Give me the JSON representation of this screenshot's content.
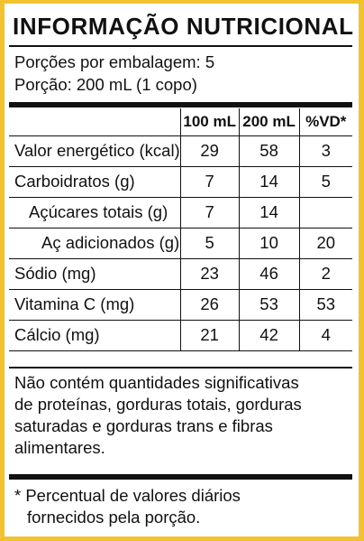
{
  "label": {
    "title": "INFORMAÇÃO NUTRICIONAL",
    "servings_per_package": "Porções por embalagem: 5",
    "serving_size": "Porção: 200 mL (1 copo)",
    "columns": [
      "",
      "100 mL",
      "200 mL",
      "%VD*"
    ],
    "rows": [
      {
        "label": "Valor energético (kcal)",
        "per100": "29",
        "per200": "58",
        "vd": "3"
      },
      {
        "label": "Carboidratos (g)",
        "per100": "7",
        "per200": "14",
        "vd": "5"
      },
      {
        "label": "Açúcares totais (g)",
        "per100": "7",
        "per200": "14",
        "vd": ""
      },
      {
        "label": "Aç adicionados (g)",
        "per100": "5",
        "per200": "10",
        "vd": "20"
      },
      {
        "label": "Sódio (mg)",
        "per100": "23",
        "per200": "46",
        "vd": "2"
      },
      {
        "label": "Vitamina C (mg)",
        "per100": "26",
        "per200": "53",
        "vd": "53"
      },
      {
        "label": "Cálcio (mg)",
        "per100": "21",
        "per200": "42",
        "vd": "4"
      }
    ],
    "note_lines": [
      "Não contém quantidades significativas",
      "de proteínas, gorduras totais, gorduras",
      "saturadas e gorduras trans e fibras",
      "alimentares."
    ],
    "footnote_lines": [
      "* Percentual de valores diários",
      "fornecidos pela porção."
    ]
  },
  "colors": {
    "frame": "#f2c232",
    "text": "#111111",
    "background": "#ffffff"
  }
}
